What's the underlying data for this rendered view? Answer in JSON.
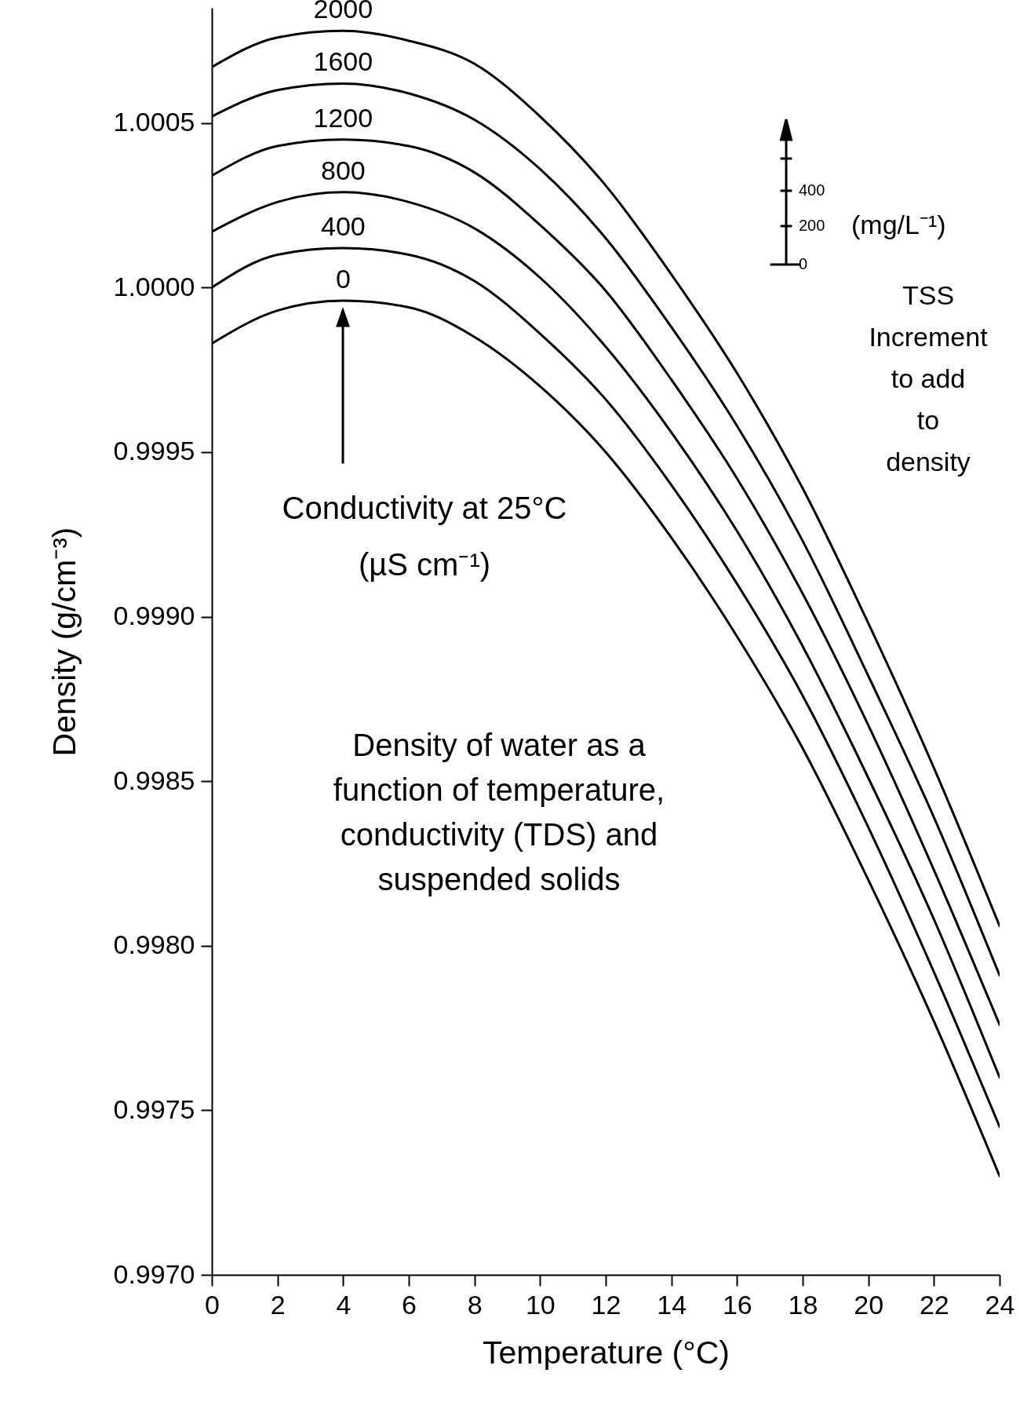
{
  "chart_data": {
    "type": "line",
    "title": "Density of water as a function of temperature, conductivity (TDS) and suspended solids",
    "xlabel": "Temperature (°C)",
    "ylabel": "Density (g/cm⁻³)",
    "x": [
      0,
      2,
      4,
      6,
      8,
      10,
      12,
      14,
      16,
      18,
      20,
      22,
      24
    ],
    "series": [
      {
        "name": "0",
        "color": "#000000",
        "values": [
          0.99983,
          0.99993,
          0.99996,
          0.99994,
          0.99985,
          0.9997,
          0.9995,
          0.99924,
          0.99894,
          0.9986,
          0.9982,
          0.99777,
          0.9973
        ]
      },
      {
        "name": "400",
        "color": "#000000",
        "values": [
          1.0,
          1.0001,
          1.00012,
          1.0001,
          1.00002,
          0.99986,
          0.99966,
          0.9994,
          0.9991,
          0.99876,
          0.99836,
          0.99792,
          0.99745
        ]
      },
      {
        "name": "800",
        "color": "#000000",
        "values": [
          1.00017,
          1.00026,
          1.00029,
          1.00026,
          1.00018,
          1.00003,
          0.99982,
          0.99956,
          0.99926,
          0.99891,
          0.99851,
          0.99808,
          0.9976
        ]
      },
      {
        "name": "1200",
        "color": "#000000",
        "values": [
          1.00034,
          1.00043,
          1.00045,
          1.00043,
          1.00035,
          1.00019,
          0.99999,
          0.99972,
          0.99942,
          0.99907,
          0.99867,
          0.99823,
          0.99776
        ]
      },
      {
        "name": "1600",
        "color": "#000000",
        "values": [
          1.00052,
          1.0006,
          1.00062,
          1.00059,
          1.00051,
          1.00036,
          1.00015,
          0.99988,
          0.99958,
          0.99923,
          0.99882,
          0.99839,
          0.99791
        ]
      },
      {
        "name": "2000",
        "color": "#000000",
        "values": [
          1.00067,
          1.00076,
          1.00078,
          1.00075,
          1.00068,
          1.00052,
          1.00031,
          1.00004,
          0.99974,
          0.99939,
          0.99898,
          0.99854,
          0.99806
        ]
      }
    ],
    "xlim": [
      0,
      24
    ],
    "xticks": [
      0,
      2,
      4,
      6,
      8,
      10,
      12,
      14,
      16,
      18,
      20,
      22,
      24
    ],
    "ylim": [
      0.997,
      1.00085
    ],
    "yticks": [
      {
        "value": 0.997,
        "label": "0.9970"
      },
      0.9975,
      {
        "value": 0.998,
        "label": "0.9980"
      },
      0.9985,
      {
        "value": 0.999,
        "label": "0.9990"
      },
      0.9995,
      {
        "value": 1,
        "label": "1.0000"
      },
      1.0005
    ],
    "line_style": "solid",
    "legend": "top right",
    "annotations": [
      "Conductivity at 25°C (µS cm⁻¹)",
      "0",
      "200",
      "400",
      "(mg/L⁻¹)",
      "TSS Increment to add to density"
    ]
  }
}
